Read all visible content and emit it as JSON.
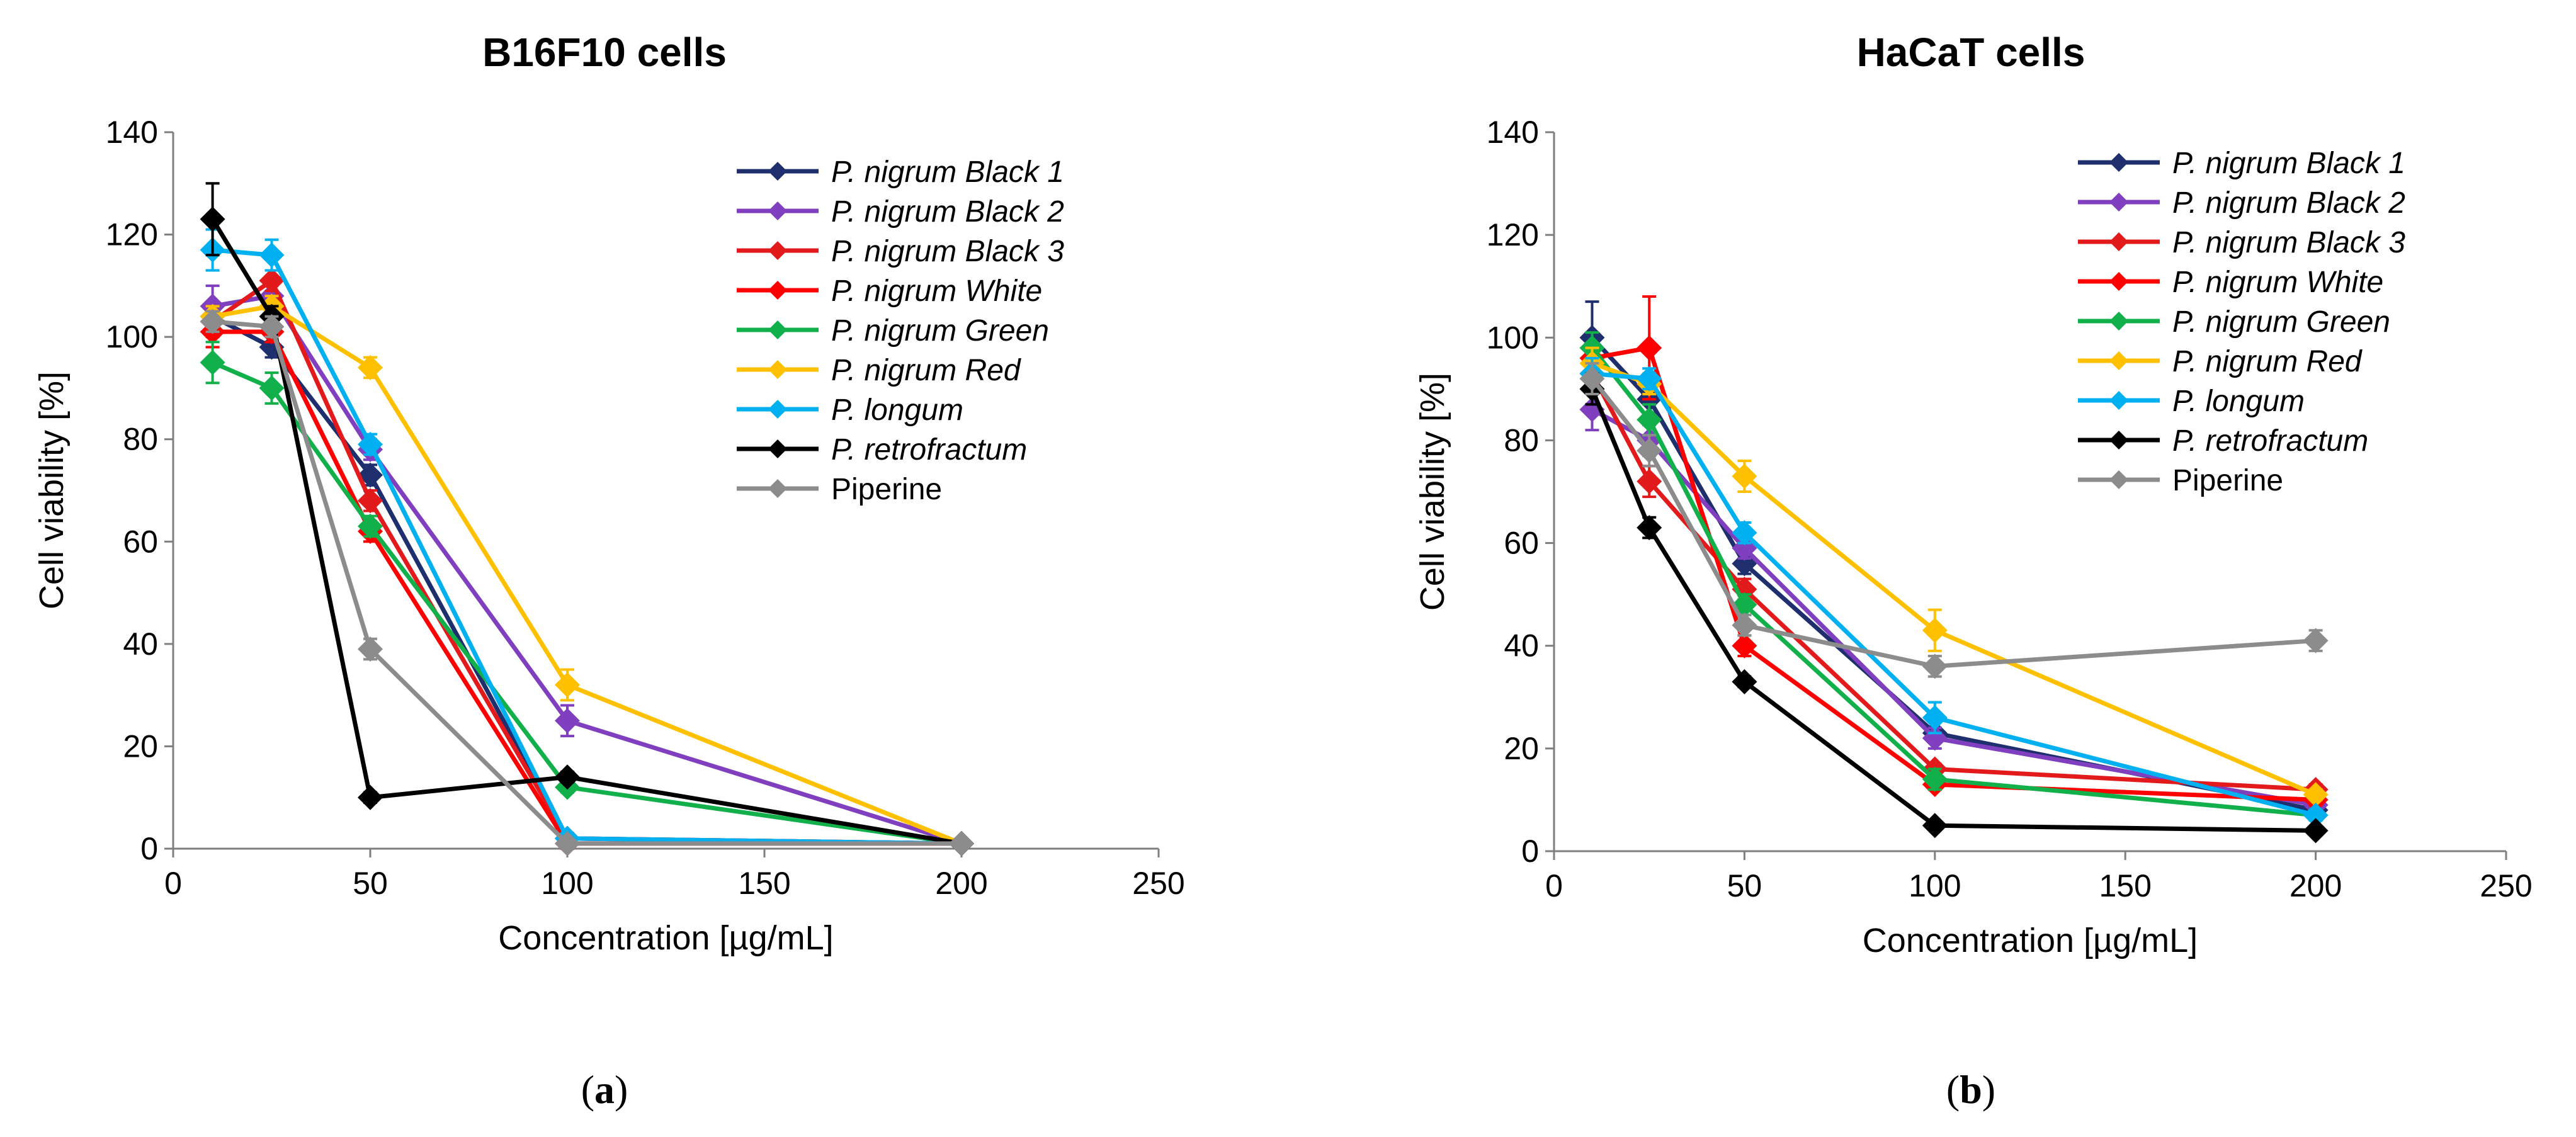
{
  "chart_data": [
    {
      "type": "line",
      "panel_label": "a",
      "title": "B16F10 cells",
      "xlabel": "Concentration [µg/mL]",
      "ylabel": "Cell viability [%]",
      "xlim": [
        0,
        250
      ],
      "ylim": [
        0,
        140
      ],
      "xticks": [
        0,
        50,
        100,
        150,
        200,
        250
      ],
      "yticks": [
        0,
        20,
        40,
        60,
        80,
        100,
        120,
        140
      ],
      "x": [
        10,
        25,
        50,
        100,
        200
      ],
      "legend_position": "top-right",
      "series": [
        {
          "name": "P. nigrum Black 1",
          "italic": true,
          "color": "#1f2f6e",
          "values": [
            104,
            98,
            73,
            2,
            1
          ],
          "errors": [
            2,
            2,
            2,
            1,
            0.5
          ]
        },
        {
          "name": "P. nigrum Black 2",
          "italic": true,
          "color": "#7f3fbf",
          "values": [
            106,
            108,
            78,
            25,
            1
          ],
          "errors": [
            4,
            2,
            2,
            3,
            0.5
          ]
        },
        {
          "name": "P. nigrum Black 3",
          "italic": true,
          "color": "#e31a1c",
          "values": [
            103,
            111,
            68,
            2,
            1
          ],
          "errors": [
            3,
            2,
            2,
            1,
            0.5
          ]
        },
        {
          "name": "P. nigrum White",
          "italic": true,
          "color": "#ff0000",
          "values": [
            101,
            101,
            62,
            1,
            1
          ],
          "errors": [
            3,
            2,
            2,
            1,
            0.5
          ]
        },
        {
          "name": "P. nigrum Green",
          "italic": true,
          "color": "#12b04a",
          "values": [
            95,
            90,
            63,
            12,
            1
          ],
          "errors": [
            4,
            3,
            2,
            1,
            0.5
          ]
        },
        {
          "name": "P. nigrum Red",
          "italic": true,
          "color": "#ffc000",
          "values": [
            104,
            106,
            94,
            32,
            1
          ],
          "errors": [
            2,
            2,
            2,
            3,
            0.5
          ]
        },
        {
          "name": "P. longum",
          "italic": true,
          "color": "#00b0f0",
          "values": [
            117,
            116,
            79,
            2,
            1
          ],
          "errors": [
            4,
            3,
            2,
            1,
            0.5
          ]
        },
        {
          "name": "P. retrofractum",
          "italic": true,
          "color": "#000000",
          "values": [
            123,
            104,
            10,
            14,
            1
          ],
          "errors": [
            7,
            2,
            1,
            1,
            0.5
          ]
        },
        {
          "name": "Piperine",
          "italic": false,
          "color": "#8c8c8c",
          "values": [
            103,
            102,
            39,
            1,
            1
          ],
          "errors": [
            2,
            2,
            2,
            0.5,
            0.5
          ]
        }
      ]
    },
    {
      "type": "line",
      "panel_label": "b",
      "title": "HaCaT cells",
      "xlabel": "Concentration [µg/mL]",
      "ylabel": "Cell viability [%]",
      "xlim": [
        0,
        250
      ],
      "ylim": [
        0,
        140
      ],
      "xticks": [
        0,
        50,
        100,
        150,
        200,
        250
      ],
      "yticks": [
        0,
        20,
        40,
        60,
        80,
        100,
        120,
        140
      ],
      "x": [
        10,
        25,
        50,
        100,
        200
      ],
      "legend_position": "top-right",
      "series": [
        {
          "name": "P. nigrum Black 1",
          "italic": true,
          "color": "#1f2f6e",
          "values": [
            100,
            88,
            56,
            23,
            8
          ],
          "errors": [
            7,
            3,
            2,
            1,
            1
          ]
        },
        {
          "name": "P. nigrum Black 2",
          "italic": true,
          "color": "#7f3fbf",
          "values": [
            86,
            80,
            59,
            22,
            9
          ],
          "errors": [
            4,
            3,
            2,
            2,
            1
          ]
        },
        {
          "name": "P. nigrum Black 3",
          "italic": true,
          "color": "#e31a1c",
          "values": [
            93,
            72,
            51,
            16,
            12
          ],
          "errors": [
            3,
            3,
            2,
            1,
            1
          ]
        },
        {
          "name": "P. nigrum White",
          "italic": true,
          "color": "#ff0000",
          "values": [
            96,
            98,
            40,
            13,
            10
          ],
          "errors": [
            3,
            10,
            2,
            1,
            1
          ]
        },
        {
          "name": "P. nigrum Green",
          "italic": true,
          "color": "#12b04a",
          "values": [
            98,
            84,
            48,
            14,
            7
          ],
          "errors": [
            3,
            3,
            2,
            2,
            1
          ]
        },
        {
          "name": "P. nigrum Red",
          "italic": true,
          "color": "#ffc000",
          "values": [
            95,
            91,
            73,
            43,
            11
          ],
          "errors": [
            3,
            2,
            3,
            4,
            1
          ]
        },
        {
          "name": "P. longum",
          "italic": true,
          "color": "#00b0f0",
          "values": [
            93,
            92,
            62,
            26,
            7
          ],
          "errors": [
            3,
            2,
            2,
            3,
            1
          ]
        },
        {
          "name": "P. retrofractum",
          "italic": true,
          "color": "#000000",
          "values": [
            90,
            63,
            33,
            5,
            4
          ],
          "errors": [
            3,
            2,
            1,
            0.5,
            0.5
          ]
        },
        {
          "name": "Piperine",
          "italic": false,
          "color": "#8c8c8c",
          "values": [
            92,
            78,
            44,
            36,
            41
          ],
          "errors": [
            3,
            3,
            2,
            2,
            2
          ]
        }
      ]
    }
  ]
}
